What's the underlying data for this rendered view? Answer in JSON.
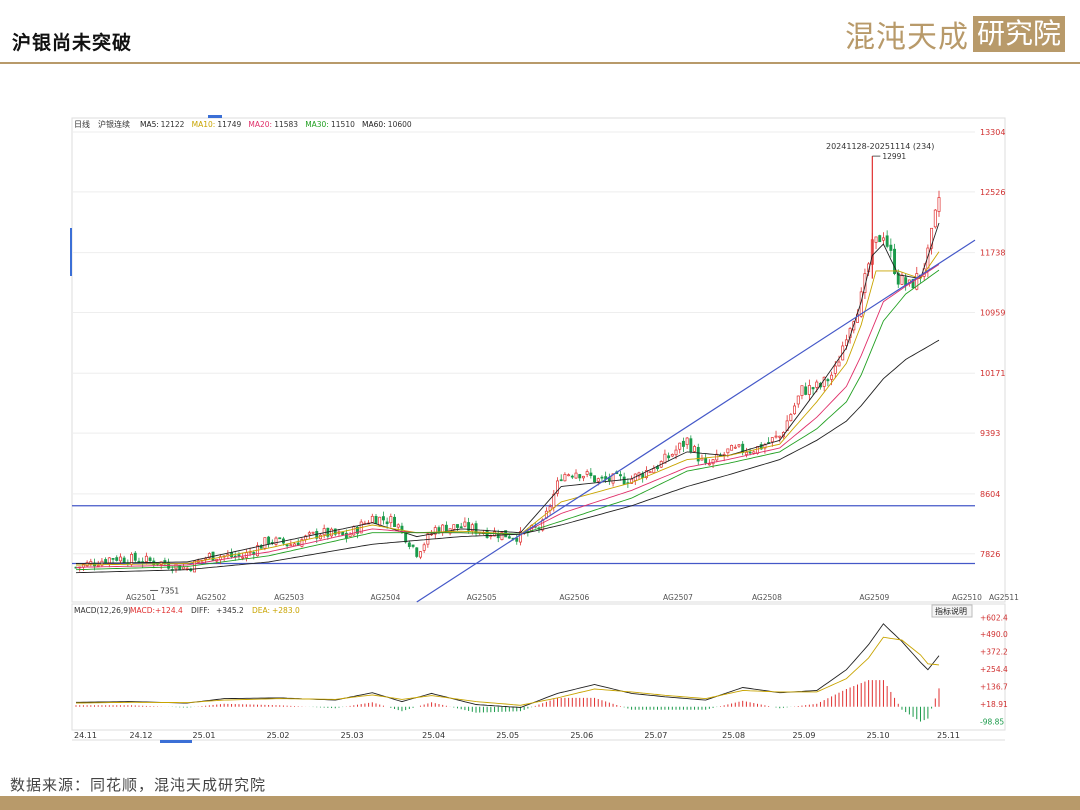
{
  "page": {
    "title": "沪银尚未突破",
    "brand_main": "混沌天成",
    "brand_boxed": "研究院",
    "source": "数据来源：同花顺，混沌天成研究院"
  },
  "chart_data": {
    "type": "candlestick",
    "header": {
      "period": "日线",
      "instrument": "沪银连续",
      "ma": [
        {
          "name": "MA5",
          "value": "12122",
          "color": "#222222"
        },
        {
          "name": "MA10",
          "value": "11749",
          "color": "#c8a400"
        },
        {
          "name": "MA20",
          "value": "11583",
          "color": "#e0306a"
        },
        {
          "name": "MA30",
          "value": "11510",
          "color": "#22a022"
        },
        {
          "name": "MA60",
          "value": "10600",
          "color": "#222222"
        }
      ]
    },
    "range_label": "20241128-20251114 (234)",
    "y_ticks": [
      "13304",
      "12526",
      "11738",
      "10959",
      "10171",
      "9393",
      "8604",
      "7826"
    ],
    "ylim": [
      7200,
      13304
    ],
    "annotations": {
      "high": "12991",
      "low": "7351"
    },
    "contract_labels": [
      "AG2501",
      "AG2502",
      "AG2503",
      "AG2504",
      "AG2505",
      "AG2506",
      "AG2507",
      "AG2508",
      "AG2509",
      "AG2510",
      "AG2511"
    ],
    "x_ticks": [
      "24.11",
      "24.12",
      "25.01",
      "25.02",
      "25.03",
      "25.04",
      "25.05",
      "25.06",
      "25.07",
      "25.08",
      "25.09",
      "25.10",
      "25.11"
    ],
    "horizontal_lines": [
      8450,
      7700
    ],
    "trend_line": {
      "from": {
        "x": "25.04",
        "y": 7200
      },
      "to": {
        "x": "25.11",
        "y": 11650
      }
    },
    "candles_trace": [
      {
        "x": 0,
        "y": 7650
      },
      {
        "x": 10,
        "y": 7780
      },
      {
        "x": 22,
        "y": 7720
      },
      {
        "x": 30,
        "y": 7640
      },
      {
        "x": 36,
        "y": 7800
      },
      {
        "x": 45,
        "y": 7790
      },
      {
        "x": 52,
        "y": 8000
      },
      {
        "x": 58,
        "y": 7950
      },
      {
        "x": 66,
        "y": 8100
      },
      {
        "x": 73,
        "y": 8050
      },
      {
        "x": 80,
        "y": 8300
      },
      {
        "x": 86,
        "y": 8250
      },
      {
        "x": 92,
        "y": 7850
      },
      {
        "x": 97,
        "y": 8150
      },
      {
        "x": 104,
        "y": 8180
      },
      {
        "x": 112,
        "y": 8100
      },
      {
        "x": 120,
        "y": 8050
      },
      {
        "x": 126,
        "y": 8200
      },
      {
        "x": 131,
        "y": 8850
      },
      {
        "x": 135,
        "y": 8900
      },
      {
        "x": 141,
        "y": 8780
      },
      {
        "x": 150,
        "y": 8800
      },
      {
        "x": 158,
        "y": 9000
      },
      {
        "x": 165,
        "y": 9300
      },
      {
        "x": 170,
        "y": 8950
      },
      {
        "x": 176,
        "y": 9150
      },
      {
        "x": 184,
        "y": 9200
      },
      {
        "x": 190,
        "y": 9350
      },
      {
        "x": 196,
        "y": 9950
      },
      {
        "x": 201,
        "y": 10000
      },
      {
        "x": 205,
        "y": 10200
      },
      {
        "x": 208,
        "y": 10700
      },
      {
        "x": 212,
        "y": 11150
      },
      {
        "x": 215,
        "y": 11800
      },
      {
        "x": 218,
        "y": 12000
      },
      {
        "x": 222,
        "y": 11400
      },
      {
        "x": 225,
        "y": 11300
      },
      {
        "x": 228,
        "y": 11450
      },
      {
        "x": 230,
        "y": 11700
      },
      {
        "x": 233,
        "y": 12450
      }
    ],
    "ma_series": [
      {
        "name": "MA5",
        "color": "#222222",
        "values": [
          [
            0,
            7700
          ],
          [
            30,
            7720
          ],
          [
            52,
            7950
          ],
          [
            80,
            8230
          ],
          [
            92,
            8050
          ],
          [
            104,
            8150
          ],
          [
            120,
            8100
          ],
          [
            131,
            8700
          ],
          [
            150,
            8800
          ],
          [
            165,
            9150
          ],
          [
            176,
            9100
          ],
          [
            190,
            9300
          ],
          [
            200,
            9950
          ],
          [
            208,
            10500
          ],
          [
            212,
            11100
          ],
          [
            215,
            11700
          ],
          [
            218,
            11850
          ],
          [
            222,
            11450
          ],
          [
            228,
            11400
          ],
          [
            233,
            12122
          ]
        ]
      },
      {
        "name": "MA10",
        "color": "#c8a400",
        "values": [
          [
            0,
            7680
          ],
          [
            30,
            7700
          ],
          [
            52,
            7900
          ],
          [
            80,
            8200
          ],
          [
            92,
            8100
          ],
          [
            104,
            8120
          ],
          [
            120,
            8080
          ],
          [
            131,
            8500
          ],
          [
            150,
            8750
          ],
          [
            165,
            9050
          ],
          [
            176,
            9100
          ],
          [
            190,
            9250
          ],
          [
            200,
            9800
          ],
          [
            208,
            10300
          ],
          [
            212,
            10800
          ],
          [
            216,
            11500
          ],
          [
            222,
            11500
          ],
          [
            228,
            11400
          ],
          [
            233,
            11749
          ]
        ]
      },
      {
        "name": "MA20",
        "color": "#e0306a",
        "values": [
          [
            0,
            7650
          ],
          [
            30,
            7680
          ],
          [
            52,
            7850
          ],
          [
            80,
            8150
          ],
          [
            92,
            8100
          ],
          [
            104,
            8100
          ],
          [
            120,
            8080
          ],
          [
            131,
            8350
          ],
          [
            150,
            8650
          ],
          [
            165,
            8950
          ],
          [
            176,
            9050
          ],
          [
            190,
            9200
          ],
          [
            200,
            9600
          ],
          [
            208,
            10000
          ],
          [
            212,
            10400
          ],
          [
            218,
            11100
          ],
          [
            224,
            11300
          ],
          [
            233,
            11583
          ]
        ]
      },
      {
        "name": "MA30",
        "color": "#22a022",
        "values": [
          [
            0,
            7620
          ],
          [
            30,
            7660
          ],
          [
            52,
            7800
          ],
          [
            80,
            8100
          ],
          [
            92,
            8100
          ],
          [
            104,
            8100
          ],
          [
            120,
            8080
          ],
          [
            131,
            8250
          ],
          [
            150,
            8550
          ],
          [
            165,
            8900
          ],
          [
            176,
            9000
          ],
          [
            190,
            9150
          ],
          [
            200,
            9450
          ],
          [
            208,
            9800
          ],
          [
            212,
            10150
          ],
          [
            218,
            10850
          ],
          [
            224,
            11200
          ],
          [
            233,
            11510
          ]
        ]
      },
      {
        "name": "MA60",
        "color": "#222222",
        "values": [
          [
            0,
            7580
          ],
          [
            30,
            7620
          ],
          [
            52,
            7720
          ],
          [
            80,
            7950
          ],
          [
            104,
            8050
          ],
          [
            120,
            8080
          ],
          [
            131,
            8200
          ],
          [
            150,
            8450
          ],
          [
            165,
            8700
          ],
          [
            176,
            8850
          ],
          [
            190,
            9050
          ],
          [
            200,
            9300
          ],
          [
            208,
            9550
          ],
          [
            212,
            9750
          ],
          [
            218,
            10100
          ],
          [
            224,
            10350
          ],
          [
            233,
            10600
          ]
        ]
      }
    ],
    "macd": {
      "label": "MACD(12,26,9)",
      "values": {
        "MACD": "+124.4",
        "DIFF": "+345.2",
        "DEA": "+283.0"
      },
      "button": "指标说明",
      "y_ticks": [
        "+602.4",
        "+490.0",
        "+372.2",
        "+254.4",
        "+136.7",
        "+18.91",
        "-98.85"
      ],
      "ylim": [
        -130,
        640
      ],
      "diff": [
        [
          0,
          30
        ],
        [
          15,
          35
        ],
        [
          30,
          25
        ],
        [
          40,
          55
        ],
        [
          55,
          60
        ],
        [
          70,
          45
        ],
        [
          80,
          95
        ],
        [
          88,
          35
        ],
        [
          96,
          90
        ],
        [
          108,
          15
        ],
        [
          120,
          -5
        ],
        [
          130,
          90
        ],
        [
          140,
          150
        ],
        [
          150,
          90
        ],
        [
          160,
          65
        ],
        [
          170,
          45
        ],
        [
          180,
          130
        ],
        [
          190,
          95
        ],
        [
          200,
          110
        ],
        [
          208,
          250
        ],
        [
          214,
          420
        ],
        [
          218,
          560
        ],
        [
          223,
          440
        ],
        [
          228,
          300
        ],
        [
          230,
          250
        ],
        [
          233,
          345
        ]
      ],
      "dea": [
        [
          0,
          25
        ],
        [
          15,
          30
        ],
        [
          30,
          28
        ],
        [
          40,
          45
        ],
        [
          55,
          55
        ],
        [
          70,
          50
        ],
        [
          80,
          80
        ],
        [
          88,
          50
        ],
        [
          96,
          75
        ],
        [
          108,
          35
        ],
        [
          120,
          10
        ],
        [
          130,
          60
        ],
        [
          140,
          120
        ],
        [
          150,
          100
        ],
        [
          160,
          75
        ],
        [
          170,
          55
        ],
        [
          180,
          110
        ],
        [
          190,
          100
        ],
        [
          200,
          100
        ],
        [
          208,
          190
        ],
        [
          214,
          330
        ],
        [
          218,
          470
        ],
        [
          223,
          450
        ],
        [
          228,
          350
        ],
        [
          230,
          290
        ],
        [
          233,
          283
        ]
      ]
    }
  }
}
